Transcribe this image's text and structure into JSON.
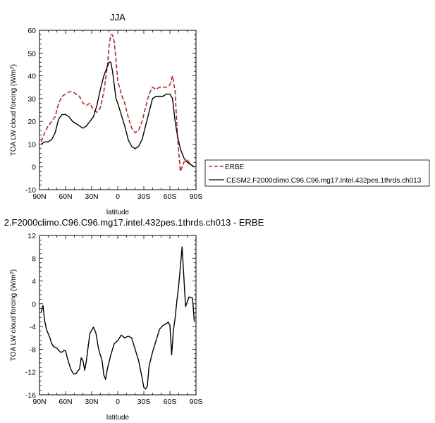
{
  "chart_data": [
    {
      "type": "line",
      "title": "JJA",
      "xlabel": "latitude",
      "ylabel": "TOA LW cloud forcing (W/m2)",
      "ylabel_main": "TOA LW cloud forcing (W/m",
      "ylabel_sup": "2",
      "ylabel_tail": ")",
      "xlim": [
        90,
        -90
      ],
      "ylim": [
        -10,
        60
      ],
      "x_ticks": [
        {
          "value": 90,
          "label": "90N"
        },
        {
          "value": 60,
          "label": "60N"
        },
        {
          "value": 30,
          "label": "30N"
        },
        {
          "value": 0,
          "label": "0"
        },
        {
          "value": -30,
          "label": "30S"
        },
        {
          "value": -60,
          "label": "60S"
        },
        {
          "value": -90,
          "label": "90S"
        }
      ],
      "y_ticks": [
        -10,
        0,
        10,
        20,
        30,
        40,
        50,
        60
      ],
      "legend": "right",
      "series": [
        {
          "name": "ERBE",
          "color": "#dd0000",
          "style": "dashed",
          "x": [
            88,
            84,
            80,
            76,
            72,
            68,
            64,
            60,
            56,
            52,
            48,
            44,
            40,
            36,
            32,
            28,
            24,
            20,
            16,
            12,
            10,
            8,
            6,
            4,
            2,
            0,
            -4,
            -8,
            -12,
            -16,
            -20,
            -24,
            -28,
            -32,
            -36,
            -40,
            -44,
            -48,
            -52,
            -56,
            -60,
            -63,
            -66,
            -69,
            -72,
            -76,
            -80,
            -84,
            -88
          ],
          "y": [
            11,
            15,
            18,
            20,
            22,
            28,
            31,
            32,
            33,
            33,
            32,
            31,
            28,
            27,
            28,
            25,
            24,
            26,
            33,
            44,
            53,
            58,
            58,
            55,
            47,
            38,
            32,
            28,
            22,
            17,
            15,
            16,
            20,
            26,
            32,
            35,
            34,
            35,
            35,
            35,
            36,
            40,
            33,
            12,
            -2,
            2,
            3,
            1,
            0
          ]
        },
        {
          "name": "CESM2.F2000climo.C96.C96.mg17.intel.432pes.1thrds.ch013",
          "color": "#000000",
          "style": "solid",
          "x": [
            88,
            84,
            80,
            76,
            72,
            68,
            64,
            60,
            56,
            52,
            48,
            44,
            40,
            36,
            32,
            28,
            24,
            20,
            16,
            12,
            10,
            8,
            6,
            4,
            2,
            0,
            -4,
            -8,
            -12,
            -16,
            -20,
            -24,
            -28,
            -32,
            -36,
            -40,
            -44,
            -48,
            -52,
            -56,
            -60,
            -63,
            -66,
            -69,
            -72,
            -76,
            -80,
            -84,
            -88
          ],
          "y": [
            10,
            11,
            11,
            12,
            15,
            21,
            23,
            23,
            22,
            20,
            19,
            18,
            17,
            18,
            20,
            22,
            27,
            34,
            40,
            44,
            46,
            46,
            42,
            36,
            30,
            28,
            23,
            18,
            12,
            9,
            8,
            9,
            12,
            18,
            24,
            30,
            31,
            31,
            31,
            32,
            32,
            30,
            20,
            13,
            8,
            4,
            2,
            1,
            0
          ]
        }
      ]
    },
    {
      "type": "line",
      "title": "2.F2000climo.C96.C96.mg17.intel.432pes.1thrds.ch013 - ERBE",
      "xlabel": "latitude",
      "ylabel": "TOA LW cloud forcing (W/m2)",
      "ylabel_main": "TOA LW cloud forcing (W/m",
      "ylabel_sup": "2",
      "ylabel_tail": ")",
      "xlim": [
        90,
        -90
      ],
      "ylim": [
        -16,
        12
      ],
      "x_ticks": [
        {
          "value": 90,
          "label": "90N"
        },
        {
          "value": 60,
          "label": "60N"
        },
        {
          "value": 30,
          "label": "30N"
        },
        {
          "value": 0,
          "label": "0"
        },
        {
          "value": -30,
          "label": "30S"
        },
        {
          "value": -60,
          "label": "60S"
        },
        {
          "value": -90,
          "label": "90S"
        }
      ],
      "y_ticks": [
        -16,
        -12,
        -8,
        -4,
        0,
        4,
        8,
        12
      ],
      "series": [
        {
          "name": "",
          "color": "#000000",
          "style": "solid",
          "x": [
            88,
            86,
            84,
            82,
            78,
            76,
            74,
            70,
            66,
            64,
            62,
            60,
            58,
            56,
            54,
            51,
            48,
            46,
            44,
            42,
            40,
            38,
            36,
            34,
            32,
            28,
            25,
            22,
            18,
            16,
            14,
            12,
            8,
            4,
            0,
            -4,
            -8,
            -12,
            -16,
            -20,
            -24,
            -28,
            -30,
            -32,
            -34,
            -36,
            -40,
            -44,
            -48,
            -52,
            -56,
            -58,
            -60,
            -62,
            -64,
            -66,
            -68,
            -70,
            -74,
            -78,
            -82,
            -86,
            -88
          ],
          "y": [
            -1.5,
            -0.3,
            -3,
            -4.5,
            -6,
            -7,
            -7.5,
            -7.8,
            -8.5,
            -8.5,
            -8.2,
            -8.3,
            -9.5,
            -10.5,
            -11.5,
            -12.3,
            -12.3,
            -11.8,
            -11.5,
            -9.5,
            -10,
            -11.7,
            -10,
            -7.5,
            -5.2,
            -4.1,
            -5.2,
            -8,
            -10,
            -12.5,
            -13.3,
            -11.5,
            -9,
            -7,
            -6.5,
            -5.5,
            -6,
            -5.7,
            -6,
            -8,
            -10,
            -13,
            -14.7,
            -15,
            -14.5,
            -11,
            -8.5,
            -6.5,
            -4.5,
            -3.8,
            -3.5,
            -3.2,
            -3.8,
            -9,
            -4.7,
            -2.5,
            0.5,
            3,
            10,
            -0.5,
            1.2,
            1,
            -3
          ]
        }
      ]
    }
  ]
}
